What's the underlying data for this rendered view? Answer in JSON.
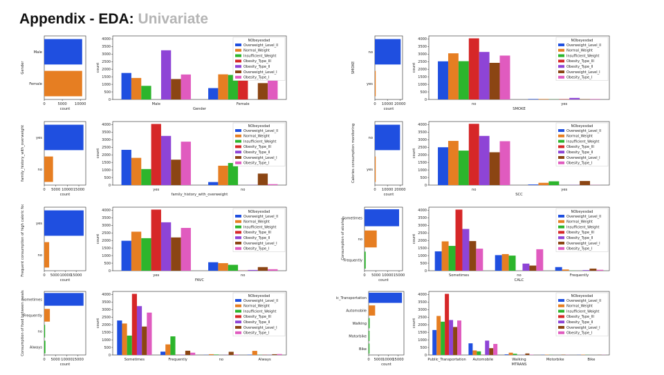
{
  "slide": {
    "title_main": "Appendix - EDA: ",
    "title_accent": "Univariate"
  },
  "colors": {
    "bar_first": "#1f4fe0",
    "bar_second": "#e67e22",
    "bar_third": "#1db31d",
    "hue": [
      "#1f4fe0",
      "#e67e22",
      "#2cb52c",
      "#d62728",
      "#8e44d6",
      "#8b4513",
      "#e05bbf"
    ]
  },
  "chart_data": [
    {
      "id": "gender_count",
      "type": "bar",
      "orientation": "horizontal",
      "ylabel": "Gender",
      "xlabel": "count",
      "categories": [
        "Male",
        "Female"
      ],
      "values": [
        10500,
        10500
      ],
      "xlim": [
        0,
        11500
      ],
      "ticks": [
        0,
        5000,
        10000
      ]
    },
    {
      "id": "gender_hue",
      "type": "bar",
      "xlabel": "Gender",
      "ylabel": "count",
      "categories": [
        "Male",
        "Female"
      ],
      "legend_title": "NObeyesdad",
      "series": [
        {
          "name": "Overweight_Level_II",
          "values": [
            1750,
            750
          ]
        },
        {
          "name": "Normal_Weight",
          "values": [
            1420,
            1660
          ]
        },
        {
          "name": "Insufficient_Weight",
          "values": [
            900,
            1620
          ]
        },
        {
          "name": "Obesity_Type_III",
          "values": [
            0,
            4050
          ]
        },
        {
          "name": "Obesity_Type_II",
          "values": [
            3250,
            0
          ]
        },
        {
          "name": "Overweight_Level_I",
          "values": [
            1350,
            1080
          ]
        },
        {
          "name": "Obesity_Type_I",
          "values": [
            1650,
            1280
          ]
        }
      ],
      "ylim": [
        0,
        4200
      ],
      "yticks": [
        0,
        500,
        1000,
        1500,
        2000,
        2500,
        3000,
        3500,
        4000
      ]
    },
    {
      "id": "smoke_count",
      "type": "bar",
      "orientation": "horizontal",
      "ylabel": "SMOKE",
      "xlabel": "count",
      "categories": [
        "no",
        "yes"
      ],
      "values": [
        20500,
        300
      ],
      "xlim": [
        0,
        22000
      ],
      "ticks": [
        0,
        10000,
        20000
      ]
    },
    {
      "id": "smoke_hue",
      "type": "bar",
      "xlabel": "SMOKE",
      "ylabel": "count",
      "categories": [
        "no",
        "yes"
      ],
      "legend_title": "NObeyesdad",
      "series": [
        {
          "name": "Overweight_Level_II",
          "values": [
            2520,
            30
          ]
        },
        {
          "name": "Normal_Weight",
          "values": [
            3050,
            30
          ]
        },
        {
          "name": "Insufficient_Weight",
          "values": [
            2530,
            10
          ]
        },
        {
          "name": "Obesity_Type_III",
          "values": [
            4040,
            20
          ]
        },
        {
          "name": "Obesity_Type_II",
          "values": [
            3140,
            100
          ]
        },
        {
          "name": "Overweight_Level_I",
          "values": [
            2420,
            20
          ]
        },
        {
          "name": "Obesity_Type_I",
          "values": [
            2900,
            30
          ]
        }
      ],
      "ylim": [
        0,
        4200
      ],
      "yticks": [
        0,
        500,
        1000,
        1500,
        2000,
        2500,
        3000,
        3500,
        4000
      ]
    },
    {
      "id": "family_count",
      "type": "bar",
      "orientation": "horizontal",
      "ylabel": "family_history_with_overweight",
      "xlabel": "count",
      "categories": [
        "yes",
        "no"
      ],
      "values": [
        17000,
        3800
      ],
      "xlim": [
        0,
        18000
      ],
      "ticks": [
        0,
        5000,
        10000,
        15000
      ]
    },
    {
      "id": "family_hue",
      "type": "bar",
      "xlabel": "family_history_with_overweight",
      "ylabel": "count",
      "categories": [
        "yes",
        "no"
      ],
      "legend_title": "NObeyesdad",
      "series": [
        {
          "name": "Overweight_Level_II",
          "values": [
            2330,
            200
          ]
        },
        {
          "name": "Normal_Weight",
          "values": [
            1800,
            1280
          ]
        },
        {
          "name": "Insufficient_Weight",
          "values": [
            1060,
            1460
          ]
        },
        {
          "name": "Obesity_Type_III",
          "values": [
            4040,
            0
          ]
        },
        {
          "name": "Obesity_Type_II",
          "values": [
            3250,
            10
          ]
        },
        {
          "name": "Overweight_Level_I",
          "values": [
            1680,
            760
          ]
        },
        {
          "name": "Obesity_Type_I",
          "values": [
            2870,
            60
          ]
        }
      ],
      "ylim": [
        0,
        4200
      ],
      "yticks": [
        0,
        500,
        1000,
        1500,
        2000,
        2500,
        3000,
        3500,
        4000
      ]
    },
    {
      "id": "scc_count",
      "type": "bar",
      "orientation": "horizontal",
      "ylabel": "Calories consumption monitoring",
      "xlabel": "count",
      "categories": [
        "no",
        "yes"
      ],
      "values": [
        20000,
        600
      ],
      "xlim": [
        0,
        22000
      ],
      "ticks": [
        0,
        10000,
        20000
      ]
    },
    {
      "id": "scc_hue",
      "type": "bar",
      "xlabel": "SCC",
      "ylabel": "count",
      "categories": [
        "no",
        "yes"
      ],
      "legend_title": "NObeyesdad",
      "series": [
        {
          "name": "Overweight_Level_II",
          "values": [
            2500,
            40
          ]
        },
        {
          "name": "Normal_Weight",
          "values": [
            2920,
            150
          ]
        },
        {
          "name": "Insufficient_Weight",
          "values": [
            2280,
            250
          ]
        },
        {
          "name": "Obesity_Type_III",
          "values": [
            4050,
            0
          ]
        },
        {
          "name": "Obesity_Type_II",
          "values": [
            3250,
            10
          ]
        },
        {
          "name": "Overweight_Level_I",
          "values": [
            2170,
            270
          ]
        },
        {
          "name": "Obesity_Type_I",
          "values": [
            2900,
            10
          ]
        }
      ],
      "ylim": [
        0,
        4200
      ],
      "yticks": [
        0,
        500,
        1000,
        1500,
        2000,
        2500,
        3000,
        3500,
        4000
      ]
    },
    {
      "id": "favc_count",
      "type": "bar",
      "orientation": "horizontal",
      "ylabel": "Frequent consumption of high caloric food",
      "xlabel": "count",
      "categories": [
        "yes",
        "no"
      ],
      "values": [
        18500,
        2300
      ],
      "xlim": [
        0,
        19500
      ],
      "ticks": [
        0,
        5000,
        10000,
        15000
      ]
    },
    {
      "id": "favc_hue",
      "type": "bar",
      "xlabel": "FAVC",
      "ylabel": "count",
      "categories": [
        "yes",
        "no"
      ],
      "legend_title": "NObeyesdad",
      "series": [
        {
          "name": "Overweight_Level_II",
          "values": [
            1980,
            560
          ]
        },
        {
          "name": "Normal_Weight",
          "values": [
            2580,
            500
          ]
        },
        {
          "name": "Insufficient_Weight",
          "values": [
            2150,
            390
          ]
        },
        {
          "name": "Obesity_Type_III",
          "values": [
            4040,
            10
          ]
        },
        {
          "name": "Obesity_Type_II",
          "values": [
            3200,
            50
          ]
        },
        {
          "name": "Overweight_Level_I",
          "values": [
            2200,
            240
          ]
        },
        {
          "name": "Obesity_Type_I",
          "values": [
            2830,
            100
          ]
        }
      ],
      "ylim": [
        0,
        4200
      ],
      "yticks": [
        0,
        500,
        1000,
        1500,
        2000,
        2500,
        3000,
        3500,
        4000
      ]
    },
    {
      "id": "calc_count",
      "type": "bar",
      "orientation": "horizontal",
      "ylabel": "Consumption of alcohol",
      "xlabel": "count",
      "categories": [
        "Sometimes",
        "no",
        "Frequently"
      ],
      "values": [
        15000,
        5300,
        500
      ],
      "xlim": [
        0,
        16500
      ],
      "ticks": [
        0,
        5000,
        10000,
        15000
      ]
    },
    {
      "id": "calc_hue",
      "type": "bar",
      "xlabel": "CALC",
      "ylabel": "count",
      "categories": [
        "Sometimes",
        "no",
        "Frequently"
      ],
      "legend_title": "NObeyesdad",
      "series": [
        {
          "name": "Overweight_Level_II",
          "values": [
            1280,
            1030,
            240
          ]
        },
        {
          "name": "Normal_Weight",
          "values": [
            1940,
            1100,
            80
          ]
        },
        {
          "name": "Insufficient_Weight",
          "values": [
            1640,
            1000,
            10
          ]
        },
        {
          "name": "Obesity_Type_III",
          "values": [
            4040,
            0,
            0
          ]
        },
        {
          "name": "Obesity_Type_II",
          "values": [
            2760,
            470,
            40
          ]
        },
        {
          "name": "Overweight_Level_I",
          "values": [
            1960,
            340,
            140
          ]
        },
        {
          "name": "Obesity_Type_I",
          "values": [
            1460,
            1420,
            60
          ]
        }
      ],
      "ylim": [
        0,
        4200
      ],
      "yticks": [
        0,
        500,
        1000,
        1500,
        2000,
        2500,
        3000,
        3500,
        4000
      ]
    },
    {
      "id": "caec_count",
      "type": "bar",
      "orientation": "horizontal",
      "ylabel": "Consumption of food between meals",
      "xlabel": "count",
      "categories": [
        "Sometimes",
        "Frequently",
        "no",
        "Always"
      ],
      "values": [
        17500,
        2500,
        300,
        500
      ],
      "xlim": [
        0,
        18500
      ],
      "ticks": [
        0,
        5000,
        10000,
        15000
      ]
    },
    {
      "id": "caec_hue",
      "type": "bar",
      "xlabel": "",
      "ylabel": "count",
      "categories": [
        "Sometimes",
        "Frequently",
        "no",
        "Always"
      ],
      "legend_title": "NObeyesdad",
      "series": [
        {
          "name": "Overweight_Level_II",
          "values": [
            2280,
            220,
            10,
            20
          ]
        },
        {
          "name": "Normal_Weight",
          "values": [
            2080,
            700,
            50,
            270
          ]
        },
        {
          "name": "Insufficient_Weight",
          "values": [
            1280,
            1230,
            30,
            10
          ]
        },
        {
          "name": "Obesity_Type_III",
          "values": [
            4040,
            10,
            0,
            10
          ]
        },
        {
          "name": "Obesity_Type_II",
          "values": [
            3230,
            20,
            10,
            10
          ]
        },
        {
          "name": "Overweight_Level_I",
          "values": [
            1880,
            280,
            210,
            50
          ]
        },
        {
          "name": "Obesity_Type_I",
          "values": [
            2800,
            150,
            30,
            60
          ]
        }
      ],
      "ylim": [
        0,
        4200
      ],
      "yticks": [
        0,
        500,
        1000,
        1500,
        2000,
        2500,
        3000,
        3500,
        4000
      ]
    },
    {
      "id": "mtrans_count",
      "type": "bar",
      "orientation": "horizontal",
      "ylabel": "",
      "xlabel": "count",
      "categories": [
        "ic_Transportation",
        "Automobile",
        "Walking",
        "Motorbike",
        "Bike"
      ],
      "values": [
        17000,
        3300,
        500,
        100,
        50
      ],
      "xlim": [
        0,
        18000
      ],
      "ticks": [
        0,
        5000,
        10000,
        15000
      ]
    },
    {
      "id": "mtrans_hue",
      "type": "bar",
      "xlabel": "MTRANS",
      "ylabel": "count",
      "categories": [
        "Public_Transportation",
        "Automobile",
        "Walking",
        "Motorbike",
        "Bike"
      ],
      "legend_title": "NObeyesdad",
      "series": [
        {
          "name": "Overweight_Level_II",
          "values": [
            1650,
            770,
            40,
            10,
            10
          ]
        },
        {
          "name": "Normal_Weight",
          "values": [
            2580,
            300,
            150,
            20,
            20
          ]
        },
        {
          "name": "Insufficient_Weight",
          "values": [
            2200,
            240,
            80,
            10,
            10
          ]
        },
        {
          "name": "Obesity_Type_III",
          "values": [
            4040,
            10,
            0,
            0,
            0
          ]
        },
        {
          "name": "Obesity_Type_II",
          "values": [
            2310,
            950,
            10,
            0,
            0
          ]
        },
        {
          "name": "Overweight_Level_I",
          "values": [
            1850,
            450,
            100,
            20,
            10
          ]
        },
        {
          "name": "Obesity_Type_I",
          "values": [
            2280,
            730,
            20,
            10,
            10
          ]
        }
      ],
      "ylim": [
        0,
        4200
      ],
      "yticks": [
        0,
        500,
        1000,
        1500,
        2000,
        2500,
        3000,
        3500,
        4000
      ]
    }
  ]
}
